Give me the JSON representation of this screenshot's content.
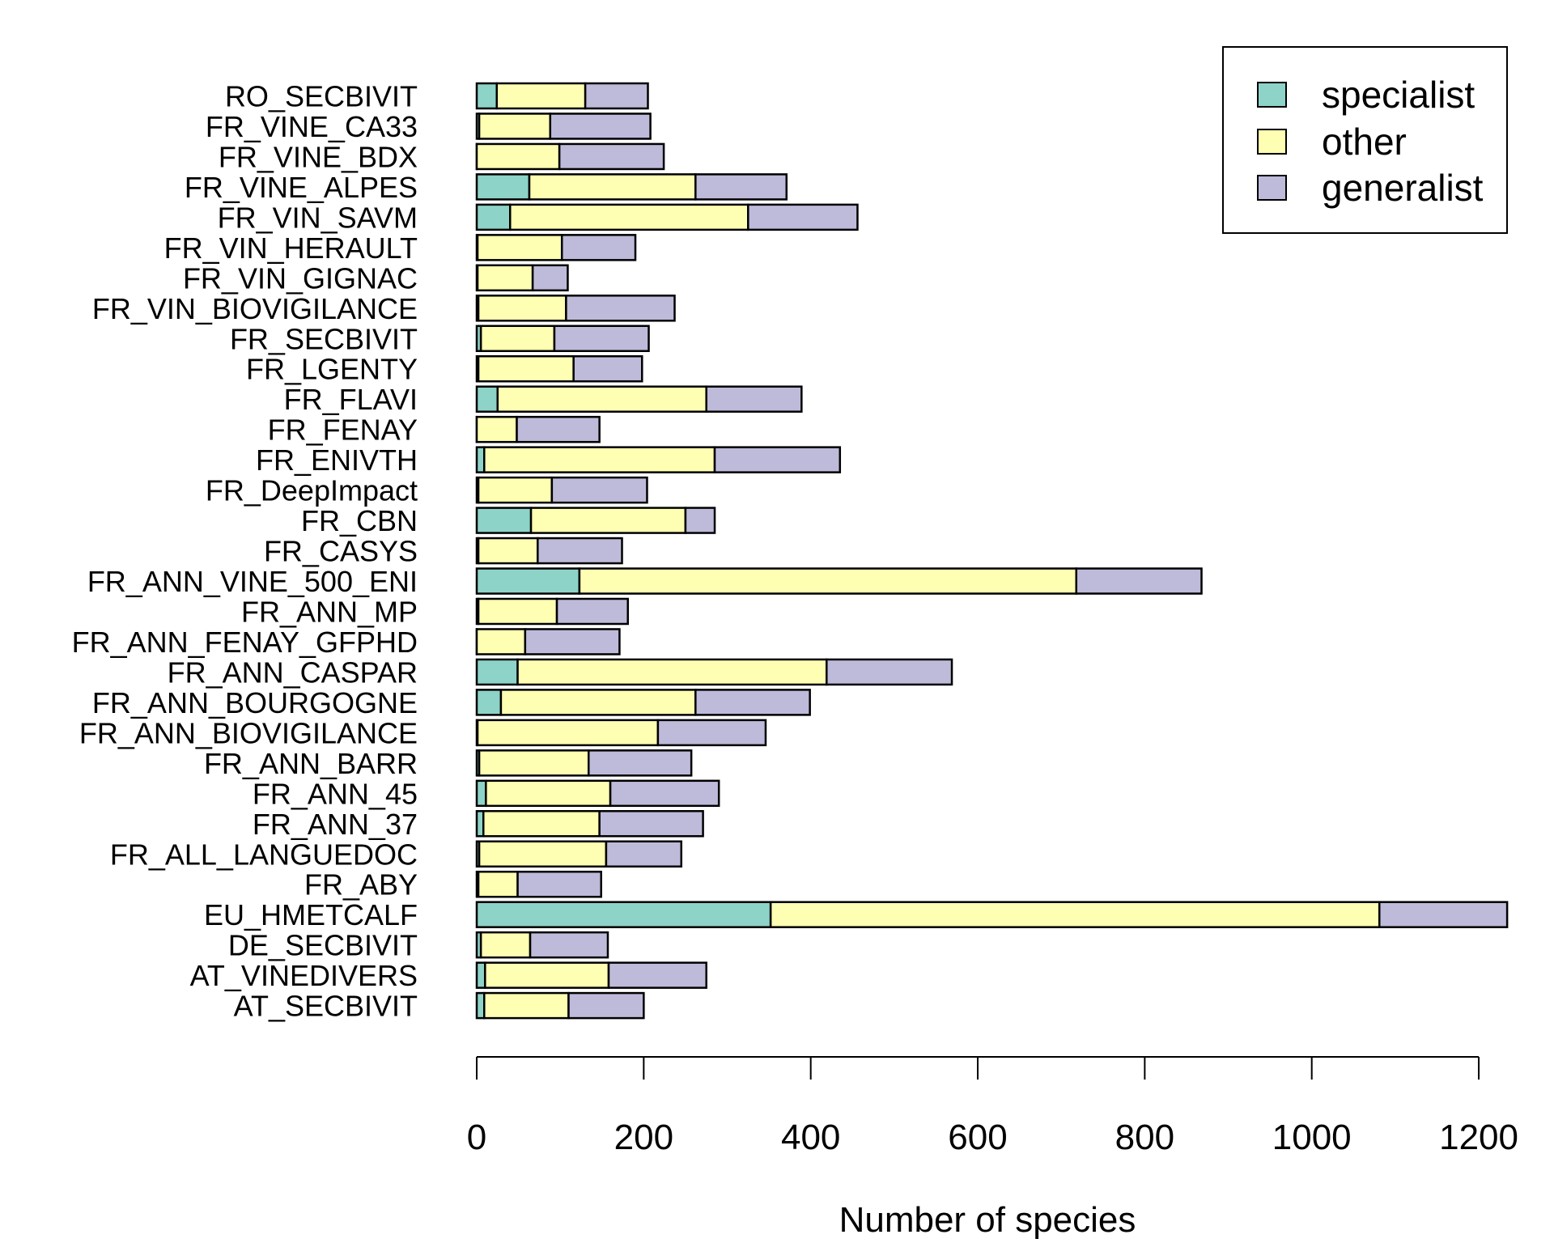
{
  "chart_data": {
    "type": "bar",
    "orientation": "horizontal",
    "stacked": true,
    "title": "",
    "xlabel": "Number of species",
    "ylabel": "",
    "xlim": [
      0,
      1240
    ],
    "xticks": [
      0,
      200,
      400,
      600,
      800,
      1000,
      1200
    ],
    "grid": false,
    "legend_position": "top-right",
    "categories": [
      "RO_SECBIVIT",
      "FR_VINE_CA33",
      "FR_VINE_BDX",
      "FR_VINE_ALPES",
      "FR_VIN_SAVM",
      "FR_VIN_HERAULT",
      "FR_VIN_GIGNAC",
      "FR_VIN_BIOVIGILANCE",
      "FR_SECBIVIT",
      "FR_LGENTY",
      "FR_FLAVI",
      "FR_FENAY",
      "FR_ENIVTH",
      "FR_DeepImpact",
      "FR_CBN",
      "FR_CASYS",
      "FR_ANN_VINE_500_ENI",
      "FR_ANN_MP",
      "FR_ANN_FENAY_GFPHD",
      "FR_ANN_CASPAR",
      "FR_ANN_BOURGOGNE",
      "FR_ANN_BIOVIGILANCE",
      "FR_ANN_BARR",
      "FR_ANN_45",
      "FR_ANN_37",
      "FR_ALL_LANGUEDOC",
      "FR_ABY",
      "EU_HMETCALF",
      "DE_SECBIVIT",
      "AT_VINEDIVERS",
      "AT_SECBIVIT"
    ],
    "series": [
      {
        "name": "specialist",
        "color": "#8DD3C7",
        "values": [
          24,
          3,
          0,
          63,
          40,
          1,
          1,
          2,
          5,
          2,
          25,
          0,
          9,
          2,
          65,
          2,
          123,
          2,
          0,
          49,
          29,
          1,
          3,
          11,
          8,
          3,
          2,
          352,
          5,
          10,
          9
        ]
      },
      {
        "name": "other",
        "color": "#FFFFB3",
        "values": [
          106,
          85,
          99,
          199,
          285,
          101,
          66,
          105,
          88,
          114,
          250,
          48,
          276,
          88,
          185,
          71,
          595,
          94,
          58,
          370,
          233,
          216,
          131,
          149,
          139,
          152,
          47,
          729,
          59,
          148,
          101
        ]
      },
      {
        "name": "generalist",
        "color": "#BEBADA",
        "values": [
          75,
          120,
          125,
          109,
          131,
          88,
          42,
          130,
          113,
          82,
          114,
          99,
          150,
          114,
          35,
          101,
          150,
          85,
          113,
          150,
          137,
          129,
          123,
          130,
          124,
          90,
          100,
          153,
          93,
          117,
          90
        ]
      }
    ]
  }
}
